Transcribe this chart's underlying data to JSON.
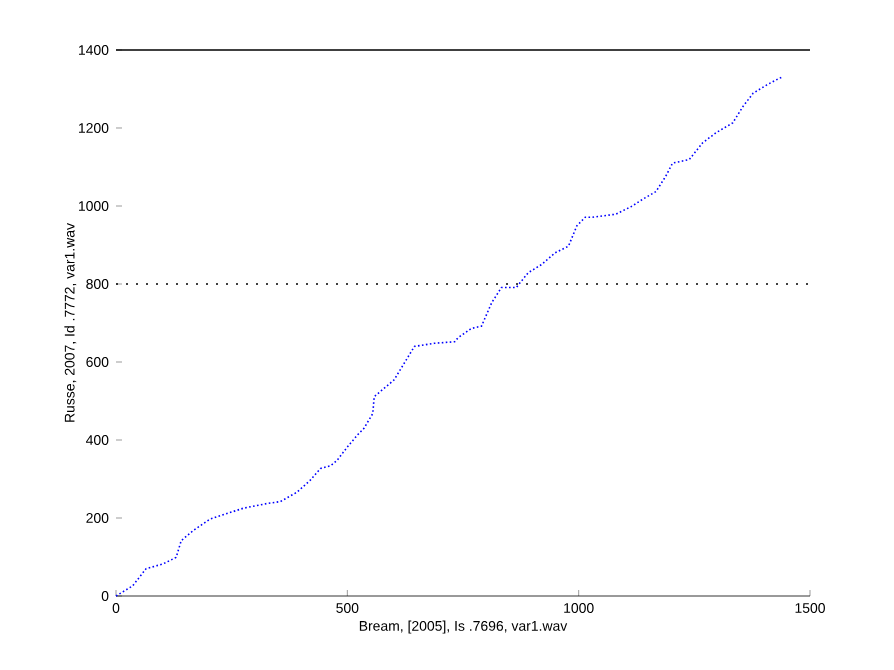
{
  "chart_data": {
    "type": "line",
    "xlabel": "Bream, [2005], Is .7696, var1.wav",
    "ylabel": "Russe, 2007, Id .7772, var1.wav",
    "x": [
      0,
      36,
      65,
      101,
      130,
      141,
      167,
      203,
      275,
      326,
      355,
      391,
      420,
      442,
      464,
      478,
      500,
      522,
      536,
      555,
      558,
      601,
      645,
      688,
      732,
      739,
      768,
      790,
      812,
      833,
      865,
      891,
      920,
      949,
      978,
      996,
      1014,
      1029,
      1080,
      1116,
      1138,
      1167,
      1188,
      1203,
      1239,
      1268,
      1297,
      1333,
      1355,
      1377,
      1406,
      1428,
      1442
    ],
    "series": [
      {
        "color": "#0000ff",
        "values": [
          0,
          26,
          70,
          82,
          99,
          142,
          168,
          197,
          225,
          237,
          242,
          266,
          297,
          327,
          334,
          348,
          382,
          413,
          430,
          468,
          511,
          554,
          640,
          648,
          652,
          662,
          686,
          692,
          752,
          791,
          791,
          829,
          850,
          880,
          897,
          949,
          971,
          971,
          979,
          1000,
          1017,
          1037,
          1076,
          1110,
          1119,
          1162,
          1188,
          1213,
          1255,
          1289,
          1310,
          1324,
          1332
        ]
      }
    ],
    "xlim": [
      0,
      1500
    ],
    "ylim": [
      0,
      1400
    ],
    "xticks": [
      0,
      500,
      1000,
      1500
    ],
    "yticks": [
      0,
      200,
      400,
      600,
      800,
      1000,
      1200,
      1400
    ],
    "ref_lines": [
      {
        "axis": "y",
        "value": 1400,
        "line_style": "solid",
        "color": "#000000"
      },
      {
        "axis": "y",
        "value": 800,
        "line_style": "dotted",
        "color": "#000000"
      }
    ],
    "grid": false,
    "line_style": "dotted",
    "marker": "none"
  }
}
